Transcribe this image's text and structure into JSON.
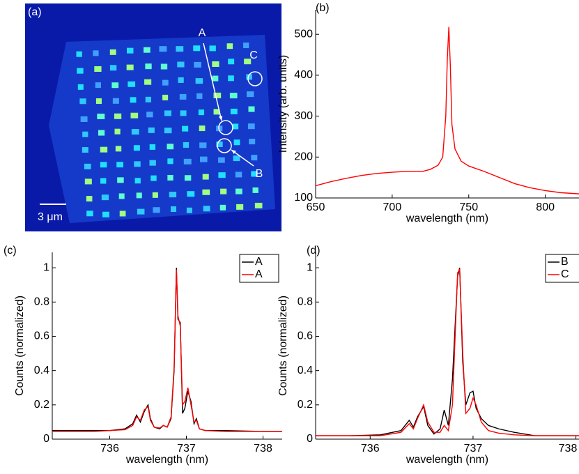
{
  "chart_data": [
    {
      "type": "image",
      "panel_label": "(a)",
      "annotations": [
        "A",
        "B",
        "C"
      ],
      "scale_bar_label": "3 μm"
    },
    {
      "type": "line",
      "panel_label": "(b)",
      "xlabel": "wavelength (nm)",
      "ylabel": "Intensity (arb. units)",
      "x": [
        650,
        660,
        670,
        680,
        690,
        700,
        710,
        720,
        725,
        730,
        733,
        735,
        736,
        737,
        738,
        739,
        741,
        745,
        750,
        760,
        770,
        780,
        790,
        800,
        810,
        822
      ],
      "values": [
        130,
        140,
        148,
        155,
        160,
        163,
        165,
        165,
        170,
        180,
        200,
        300,
        440,
        518,
        420,
        280,
        220,
        190,
        178,
        165,
        150,
        135,
        125,
        118,
        113,
        110
      ],
      "color": "#ff0000",
      "xlim": [
        650,
        822
      ],
      "ylim": [
        100,
        560
      ],
      "xticks": [
        650,
        700,
        750,
        800
      ],
      "yticks": [
        100,
        200,
        300,
        400,
        500
      ]
    },
    {
      "type": "line",
      "panel_label": "(c)",
      "xlabel": "wavelength (nm)",
      "ylabel": "Counts (normalized)",
      "x": [
        735.25,
        735.5,
        735.8,
        736.0,
        736.2,
        736.3,
        736.35,
        736.4,
        736.45,
        736.5,
        736.53,
        736.58,
        736.65,
        736.7,
        736.75,
        736.8,
        736.84,
        736.87,
        736.89,
        736.92,
        736.95,
        736.98,
        737.02,
        737.06,
        737.1,
        737.13,
        737.17,
        737.25,
        737.5,
        738.0,
        738.25
      ],
      "series": [
        {
          "name": "A",
          "color": "#000000",
          "values": [
            0.05,
            0.05,
            0.05,
            0.05,
            0.06,
            0.09,
            0.14,
            0.1,
            0.16,
            0.2,
            0.12,
            0.07,
            0.06,
            0.08,
            0.07,
            0.12,
            0.4,
            1.0,
            0.7,
            0.68,
            0.15,
            0.18,
            0.28,
            0.22,
            0.09,
            0.12,
            0.06,
            0.05,
            0.05,
            0.045,
            0.045
          ]
        },
        {
          "name": "A",
          "color": "#ff0000",
          "values": [
            0.045,
            0.045,
            0.045,
            0.05,
            0.055,
            0.08,
            0.13,
            0.11,
            0.17,
            0.19,
            0.11,
            0.07,
            0.065,
            0.08,
            0.07,
            0.13,
            0.42,
            0.99,
            0.72,
            0.66,
            0.2,
            0.22,
            0.3,
            0.2,
            0.1,
            0.11,
            0.06,
            0.05,
            0.045,
            0.045,
            0.045
          ]
        }
      ],
      "xlim": [
        735.25,
        738.25
      ],
      "ylim": [
        0,
        1.09
      ],
      "xticks": [
        736,
        737,
        738
      ],
      "yticks": [
        0,
        0.2,
        0.4,
        0.6,
        0.8,
        1
      ]
    },
    {
      "type": "line",
      "panel_label": "(d)",
      "xlabel": "wavelength (nm)",
      "ylabel": "Counts (normalized)",
      "x": [
        735.47,
        735.8,
        736.1,
        736.3,
        736.38,
        736.42,
        736.46,
        736.52,
        736.56,
        736.62,
        736.68,
        736.72,
        736.76,
        736.8,
        736.85,
        736.87,
        736.9,
        736.93,
        736.97,
        737.0,
        737.03,
        737.08,
        737.15,
        737.25,
        737.4,
        737.6,
        738.03
      ],
      "series": [
        {
          "name": "B",
          "color": "#000000",
          "values": [
            0.02,
            0.02,
            0.025,
            0.05,
            0.11,
            0.07,
            0.13,
            0.19,
            0.08,
            0.03,
            0.06,
            0.17,
            0.08,
            0.35,
            0.95,
            1.0,
            0.45,
            0.2,
            0.27,
            0.28,
            0.18,
            0.12,
            0.08,
            0.06,
            0.04,
            0.02,
            0.02
          ]
        },
        {
          "name": "C",
          "color": "#ff0000",
          "values": [
            0.02,
            0.02,
            0.02,
            0.04,
            0.09,
            0.06,
            0.12,
            0.2,
            0.1,
            0.04,
            0.04,
            0.08,
            0.05,
            0.2,
            0.97,
            0.99,
            0.5,
            0.15,
            0.18,
            0.24,
            0.2,
            0.1,
            0.05,
            0.035,
            0.025,
            0.02,
            0.02
          ]
        }
      ],
      "xlim": [
        735.47,
        738.03
      ],
      "ylim": [
        0,
        1.09
      ],
      "xticks": [
        736,
        737,
        738
      ],
      "yticks": [
        0,
        0.2,
        0.4,
        0.6,
        0.8,
        1
      ]
    }
  ]
}
